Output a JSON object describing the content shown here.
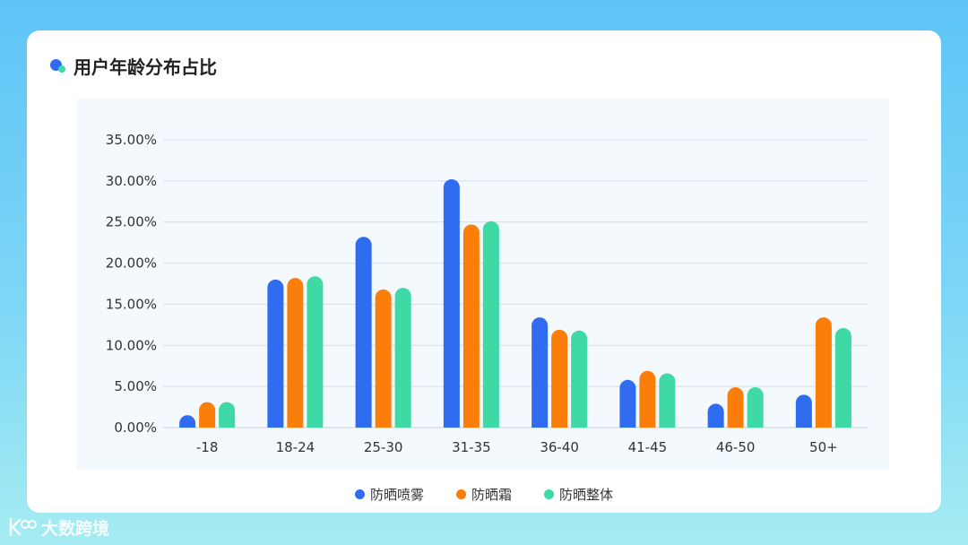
{
  "chart_data": {
    "type": "bar",
    "title": "用户年龄分布占比",
    "categories": [
      "-18",
      "18-24",
      "25-30",
      "31-35",
      "36-40",
      "41-45",
      "46-50",
      "50+"
    ],
    "series": [
      {
        "name": "防晒喷雾",
        "color": "#2f6cf0",
        "values": [
          1.5,
          18.0,
          23.2,
          30.2,
          13.4,
          5.8,
          2.9,
          4.0
        ]
      },
      {
        "name": "防晒霜",
        "color": "#fb7e0b",
        "values": [
          3.1,
          18.2,
          16.8,
          24.7,
          11.9,
          6.9,
          4.9,
          13.4
        ]
      },
      {
        "name": "防晒整体",
        "color": "#3ed9a5",
        "values": [
          3.1,
          18.4,
          17.0,
          25.1,
          11.8,
          6.6,
          4.9,
          12.1
        ]
      }
    ],
    "yticks": [
      "0.00%",
      "5.00%",
      "10.00%",
      "15.00%",
      "20.00%",
      "25.00%",
      "30.00%",
      "35.00%"
    ],
    "ylim": [
      0,
      35
    ],
    "grid": true,
    "legend_position": "bottom"
  },
  "watermark": {
    "text": "大数跨境",
    "logo_icon": "k100-logo-icon"
  }
}
